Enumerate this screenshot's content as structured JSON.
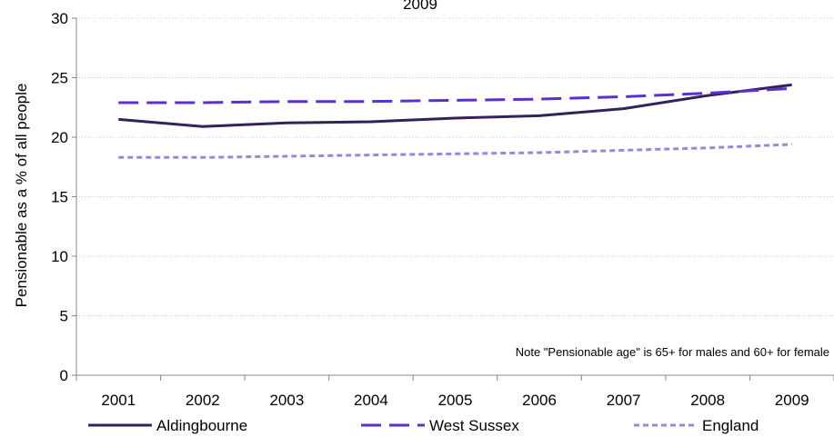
{
  "chart_data": {
    "type": "line",
    "title": "2009",
    "xlabel": "",
    "ylabel": "Pensionable as a % of all people",
    "categories": [
      "2001",
      "2002",
      "2003",
      "2004",
      "2005",
      "2006",
      "2007",
      "2008",
      "2009"
    ],
    "ylim": [
      0,
      30
    ],
    "yticks": [
      "0",
      "5",
      "10",
      "15",
      "20",
      "25",
      "30"
    ],
    "grid": true,
    "legend_position": "bottom",
    "annotation": "Note \"Pensionable age\" is 65+ for males and 60+ for female",
    "series": [
      {
        "name": "Aldingbourne",
        "color": "#35225a",
        "style": "solid",
        "values": [
          21.5,
          20.9,
          21.2,
          21.3,
          21.6,
          21.8,
          22.4,
          23.5,
          24.4
        ]
      },
      {
        "name": "West Sussex",
        "color": "#5b2fd0",
        "style": "dashed",
        "values": [
          22.9,
          22.9,
          23.0,
          23.0,
          23.1,
          23.2,
          23.4,
          23.7,
          24.1
        ]
      },
      {
        "name": "England",
        "color": "#9c86dc",
        "style": "dotted",
        "values": [
          18.3,
          18.3,
          18.4,
          18.5,
          18.6,
          18.7,
          18.9,
          19.1,
          19.4
        ]
      }
    ]
  }
}
